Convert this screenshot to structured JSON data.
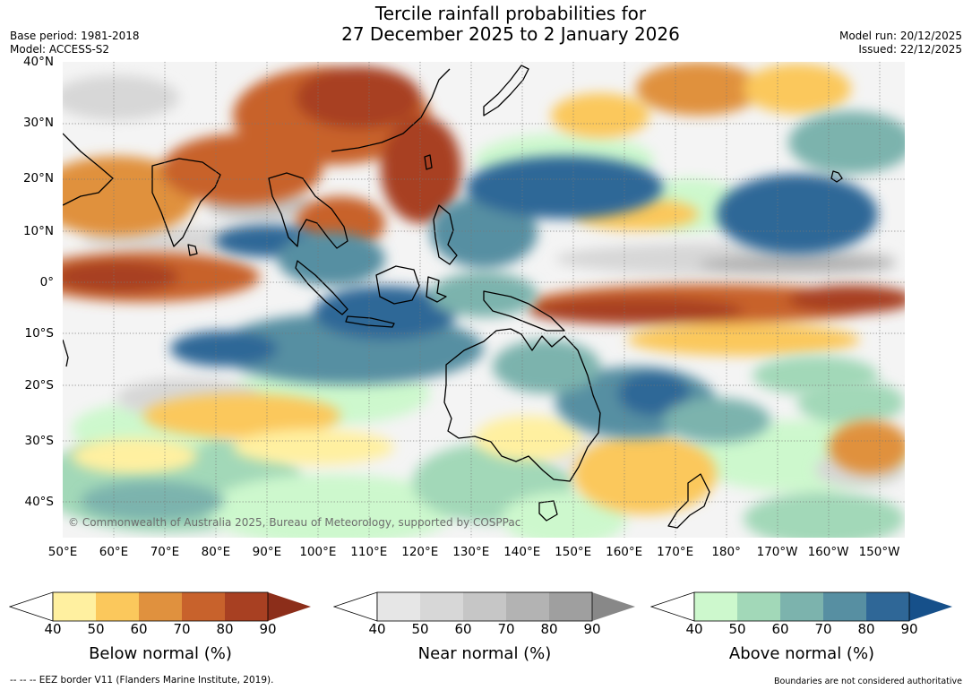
{
  "header": {
    "title_line1": "Tercile rainfall probabilities for",
    "title_line2": "27 December 2025 to 2 January 2026",
    "base_period": "Base period: 1981-2018",
    "model": "Model: ACCESS-S2",
    "model_run": "Model run: 20/12/2025",
    "issued": "Issued: 22/12/2025"
  },
  "map": {
    "lat_labels": [
      "40°N",
      "30°N",
      "20°N",
      "10°N",
      "0°",
      "10°S",
      "20°S",
      "30°S",
      "40°S"
    ],
    "lon_labels": [
      "50°E",
      "60°E",
      "70°E",
      "80°E",
      "90°E",
      "100°E",
      "110°E",
      "120°E",
      "130°E",
      "140°E",
      "150°E",
      "160°E",
      "170°E",
      "180°",
      "170°W",
      "160°W",
      "150°W"
    ],
    "lon_range": [
      50,
      215
    ],
    "lat_range": [
      -46.5,
      40
    ],
    "copyright": "© Commonwealth of Australia 2025, Bureau of Meteorology, supported by COSPPac"
  },
  "legends": [
    {
      "label": "Below normal (%)",
      "ticks": [
        "40",
        "50",
        "60",
        "70",
        "80",
        "90"
      ],
      "colors": [
        "#fff0a0",
        "#fbc85c",
        "#e0913e",
        "#c8622c",
        "#a84022"
      ],
      "extend_color": "#8c2e1a"
    },
    {
      "label": "Near normal (%)",
      "ticks": [
        "40",
        "50",
        "60",
        "70",
        "80",
        "90"
      ],
      "colors": [
        "#e6e6e6",
        "#d7d7d7",
        "#c6c6c6",
        "#b3b3b3",
        "#9f9f9f"
      ],
      "extend_color": "#888888"
    },
    {
      "label": "Above normal (%)",
      "ticks": [
        "40",
        "50",
        "60",
        "70",
        "80",
        "90"
      ],
      "colors": [
        "#cdf8cd",
        "#a2d8b8",
        "#7cb3ad",
        "#578fa2",
        "#2f6797"
      ],
      "extend_color": "#16508a"
    }
  ],
  "footer": {
    "eez": "--  --  -- EEZ border V11 (Flanders Marine Institute, 2019).",
    "disclaimer": "Boundaries are not considered authoritative"
  },
  "colors": {
    "below": [
      "#fff0a0",
      "#fbc85c",
      "#e0913e",
      "#c8622c",
      "#a84022"
    ],
    "near": [
      "#e6e6e6",
      "#d7d7d7",
      "#c6c6c6",
      "#b3b3b3"
    ],
    "above": [
      "#cdf8cd",
      "#a2d8b8",
      "#7cb3ad",
      "#578fa2",
      "#2f6797",
      "#1f5a92"
    ]
  }
}
